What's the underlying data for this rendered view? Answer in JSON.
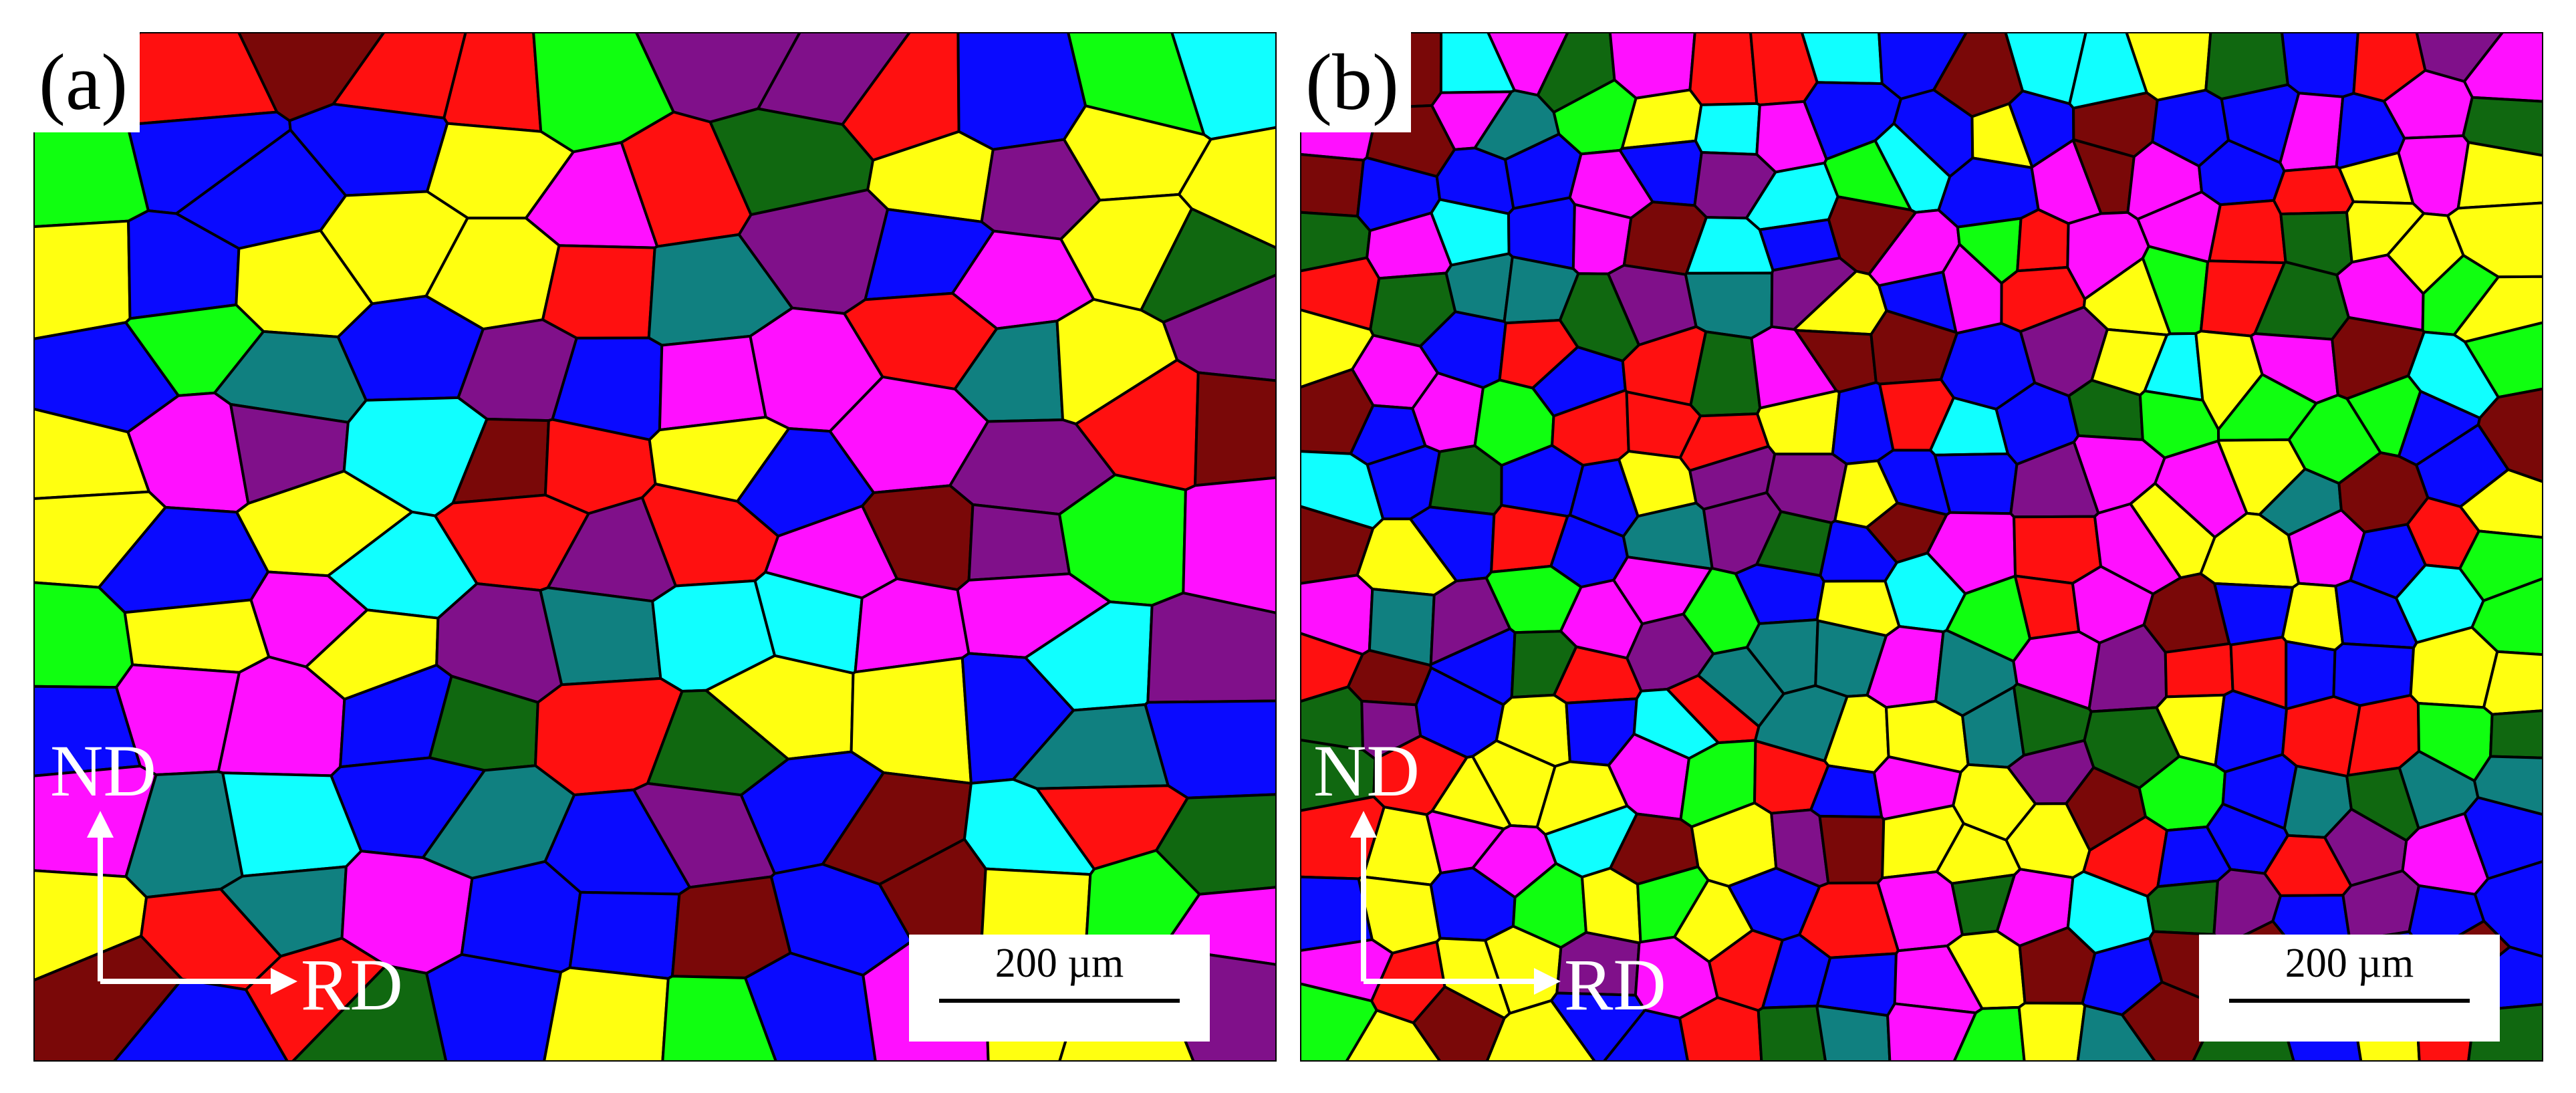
{
  "panels": [
    {
      "label": "(a)",
      "axes": {
        "vertical": "ND",
        "horizontal": "RD"
      },
      "scale_bar": "200 µm"
    },
    {
      "label": "(b)",
      "axes": {
        "vertical": "ND",
        "horizontal": "RD"
      },
      "scale_bar": "200 µm"
    }
  ],
  "colors": {
    "blue": "#0a0aff",
    "red": "#ff1010",
    "yellow": "#ffff10",
    "magenta": "#ff10ff",
    "cyan": "#10ffff",
    "dark_green": "#106810",
    "teal": "#108080",
    "purple": "#80108a",
    "green": "#10ff10",
    "maroon": "#7a0808",
    "boundary": "#000000"
  }
}
